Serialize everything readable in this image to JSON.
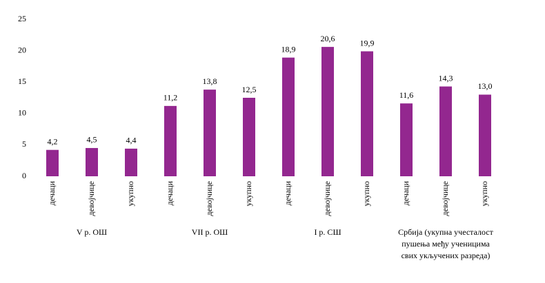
{
  "chart_data": {
    "type": "bar",
    "color": "#93278f",
    "ylim": [
      0,
      25
    ],
    "yticks": [
      0,
      5,
      10,
      15,
      20,
      25
    ],
    "groups": [
      {
        "name": [
          "V р. ОШ"
        ],
        "categories": [
          "дечаци",
          "девојчице",
          "укупно"
        ],
        "values": [
          4.2,
          4.5,
          4.4
        ],
        "value_labels": [
          "4,2",
          "4,5",
          "4,4"
        ]
      },
      {
        "name": [
          "VII р. ОШ"
        ],
        "categories": [
          "дечаци",
          "девојчице",
          "укупно"
        ],
        "values": [
          11.2,
          13.8,
          12.5
        ],
        "value_labels": [
          "11,2",
          "13,8",
          "12,5"
        ]
      },
      {
        "name": [
          "I р. СШ"
        ],
        "categories": [
          "дечаци",
          "девојчице",
          "укупно"
        ],
        "values": [
          18.9,
          20.6,
          19.9
        ],
        "value_labels": [
          "18,9",
          "20,6",
          "19,9"
        ]
      },
      {
        "name": [
          "Србија (укупна учесталост",
          "пушења међу ученицима",
          "свих укључених разреда)"
        ],
        "categories": [
          "дечаци",
          "девојчице",
          "укупно"
        ],
        "values": [
          11.6,
          14.3,
          13.0
        ],
        "value_labels": [
          "11,6",
          "14,3",
          "13,0"
        ]
      }
    ]
  }
}
